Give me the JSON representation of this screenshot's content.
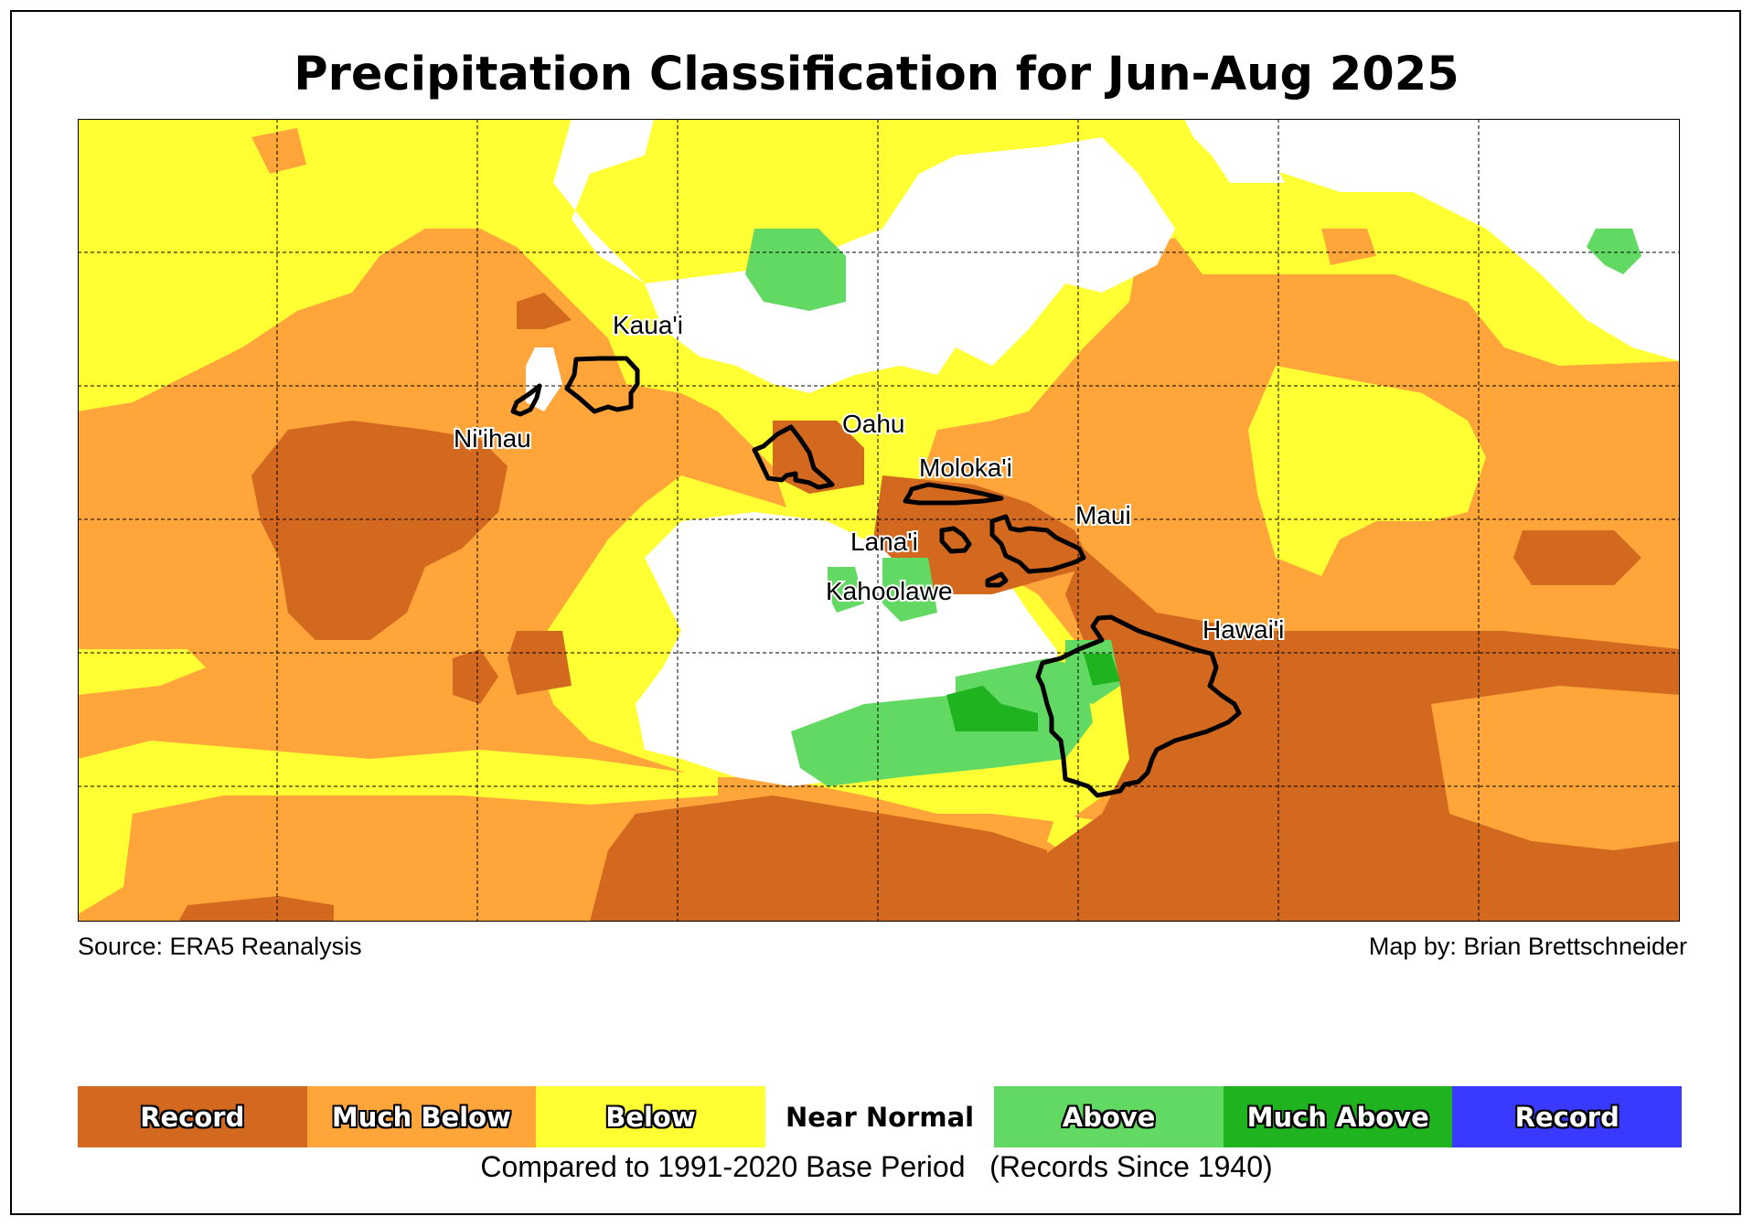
{
  "title": "Precipitation Classification for Jun-Aug 2025",
  "source": "Source: ERA5 Reanalysis",
  "credit": "Map by: Brian Brettschneider",
  "caption": "Compared to 1991-2020 Base Period   (Records Since 1940)",
  "legend": [
    {
      "label": "Record",
      "color": "#d2691e",
      "outlined": true
    },
    {
      "label": "Much Below",
      "color": "#ffa539",
      "outlined": true
    },
    {
      "label": "Below",
      "color": "#ffff33",
      "outlined": true
    },
    {
      "label": "Near Normal",
      "color": "#ffffff",
      "outlined": false
    },
    {
      "label": "Above",
      "color": "#62d962",
      "outlined": true
    },
    {
      "label": "Much Above",
      "color": "#1fb31f",
      "outlined": true
    },
    {
      "label": "Record",
      "color": "#3939ff",
      "outlined": true
    }
  ],
  "islands": [
    {
      "name": "Kaua'i"
    },
    {
      "name": "Ni'ihau"
    },
    {
      "name": "Oahu"
    },
    {
      "name": "Moloka'i"
    },
    {
      "name": "Maui"
    },
    {
      "name": "Lana'i"
    },
    {
      "name": "Kahoolawe"
    },
    {
      "name": "Hawai'i"
    }
  ]
}
